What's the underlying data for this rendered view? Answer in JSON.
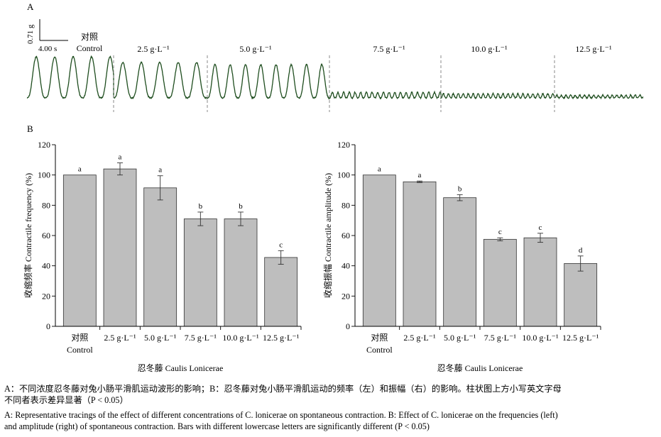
{
  "panel_a": {
    "label": "A",
    "scale_bar_y": "0.71 g",
    "scale_bar_x": "4.00 s",
    "segments": [
      {
        "cn": "对照",
        "en": "Control"
      },
      {
        "cn": "",
        "en": "2.5 g·L⁻¹"
      },
      {
        "cn": "",
        "en": "5.0 g·L⁻¹"
      },
      {
        "cn": "",
        "en": "7.5 g·L⁻¹"
      },
      {
        "cn": "",
        "en": "10.0 g·L⁻¹"
      },
      {
        "cn": "",
        "en": "12.5 g·L⁻¹"
      }
    ]
  },
  "panel_b": {
    "label": "B"
  },
  "chart_data": [
    {
      "type": "bar",
      "categories": [
        "对照 Control",
        "2.5 g·L⁻¹",
        "5.0 g·L⁻¹",
        "7.5 g·L⁻¹",
        "10.0 g·L⁻¹",
        "12.5 g·L⁻¹"
      ],
      "category_lines": [
        [
          "对照",
          "Control"
        ],
        [
          "2.5 g·L⁻¹"
        ],
        [
          "5.0 g·L⁻¹"
        ],
        [
          "7.5 g·L⁻¹"
        ],
        [
          "10.0 g·L⁻¹"
        ],
        [
          "12.5 g·L⁻¹"
        ]
      ],
      "values": [
        100,
        104,
        91.5,
        71,
        71,
        45.5
      ],
      "errors": [
        0,
        4,
        8,
        4.5,
        4.5,
        4.5
      ],
      "letters": [
        "a",
        "a",
        "a",
        "b",
        "b",
        "c"
      ],
      "ylabel": "收缩频率 Contractile frequency (%)",
      "xlabel": "忍冬藤 Caulis Lonicerae",
      "ylim": [
        0,
        120
      ],
      "yticks": [
        0,
        20,
        40,
        60,
        80,
        100,
        120
      ],
      "bar_color": "#bebebe"
    },
    {
      "type": "bar",
      "categories": [
        "对照 Control",
        "2.5 g·L⁻¹",
        "5.0 g·L⁻¹",
        "7.5 g·L⁻¹",
        "10.0 g·L⁻¹",
        "12.5 g·L⁻¹"
      ],
      "category_lines": [
        [
          "对照",
          "Control"
        ],
        [
          "2.5 g·L⁻¹"
        ],
        [
          "5.0 g·L⁻¹"
        ],
        [
          "7.5 g·L⁻¹"
        ],
        [
          "10.0 g·L⁻¹"
        ],
        [
          "12.5 g·L⁻¹"
        ]
      ],
      "values": [
        100,
        95.5,
        85,
        57.5,
        58.5,
        41.5
      ],
      "errors": [
        0,
        0.5,
        2,
        1,
        3,
        5
      ],
      "letters": [
        "a",
        "a",
        "b",
        "c",
        "c",
        "d"
      ],
      "ylabel": "收缩振幅 Contractile amplitude (%)",
      "xlabel": "忍冬藤 Caulis Lonicerae",
      "ylim": [
        0,
        120
      ],
      "yticks": [
        0,
        20,
        40,
        60,
        80,
        100,
        120
      ],
      "bar_color": "#bebebe"
    }
  ],
  "caption": {
    "cn_line1": "A：不同浓度忍冬藤对兔小肠平滑肌运动波形的影响；B：忍冬藤对兔小肠平滑肌运动的频率（左）和振幅（右）的影响。柱状图上方小写英文字母",
    "cn_line2": "不同者表示差异显著（P < 0.05）",
    "en_line1": "A: Representative tracings of the effect of different concentrations of C. lonicerae on spontaneous contraction. B: Effect of C. lonicerae on the frequencies (left)",
    "en_line2": "and amplitude (right) of spontaneous contraction. Bars with different lowercase letters are significantly different (P < 0.05)"
  }
}
